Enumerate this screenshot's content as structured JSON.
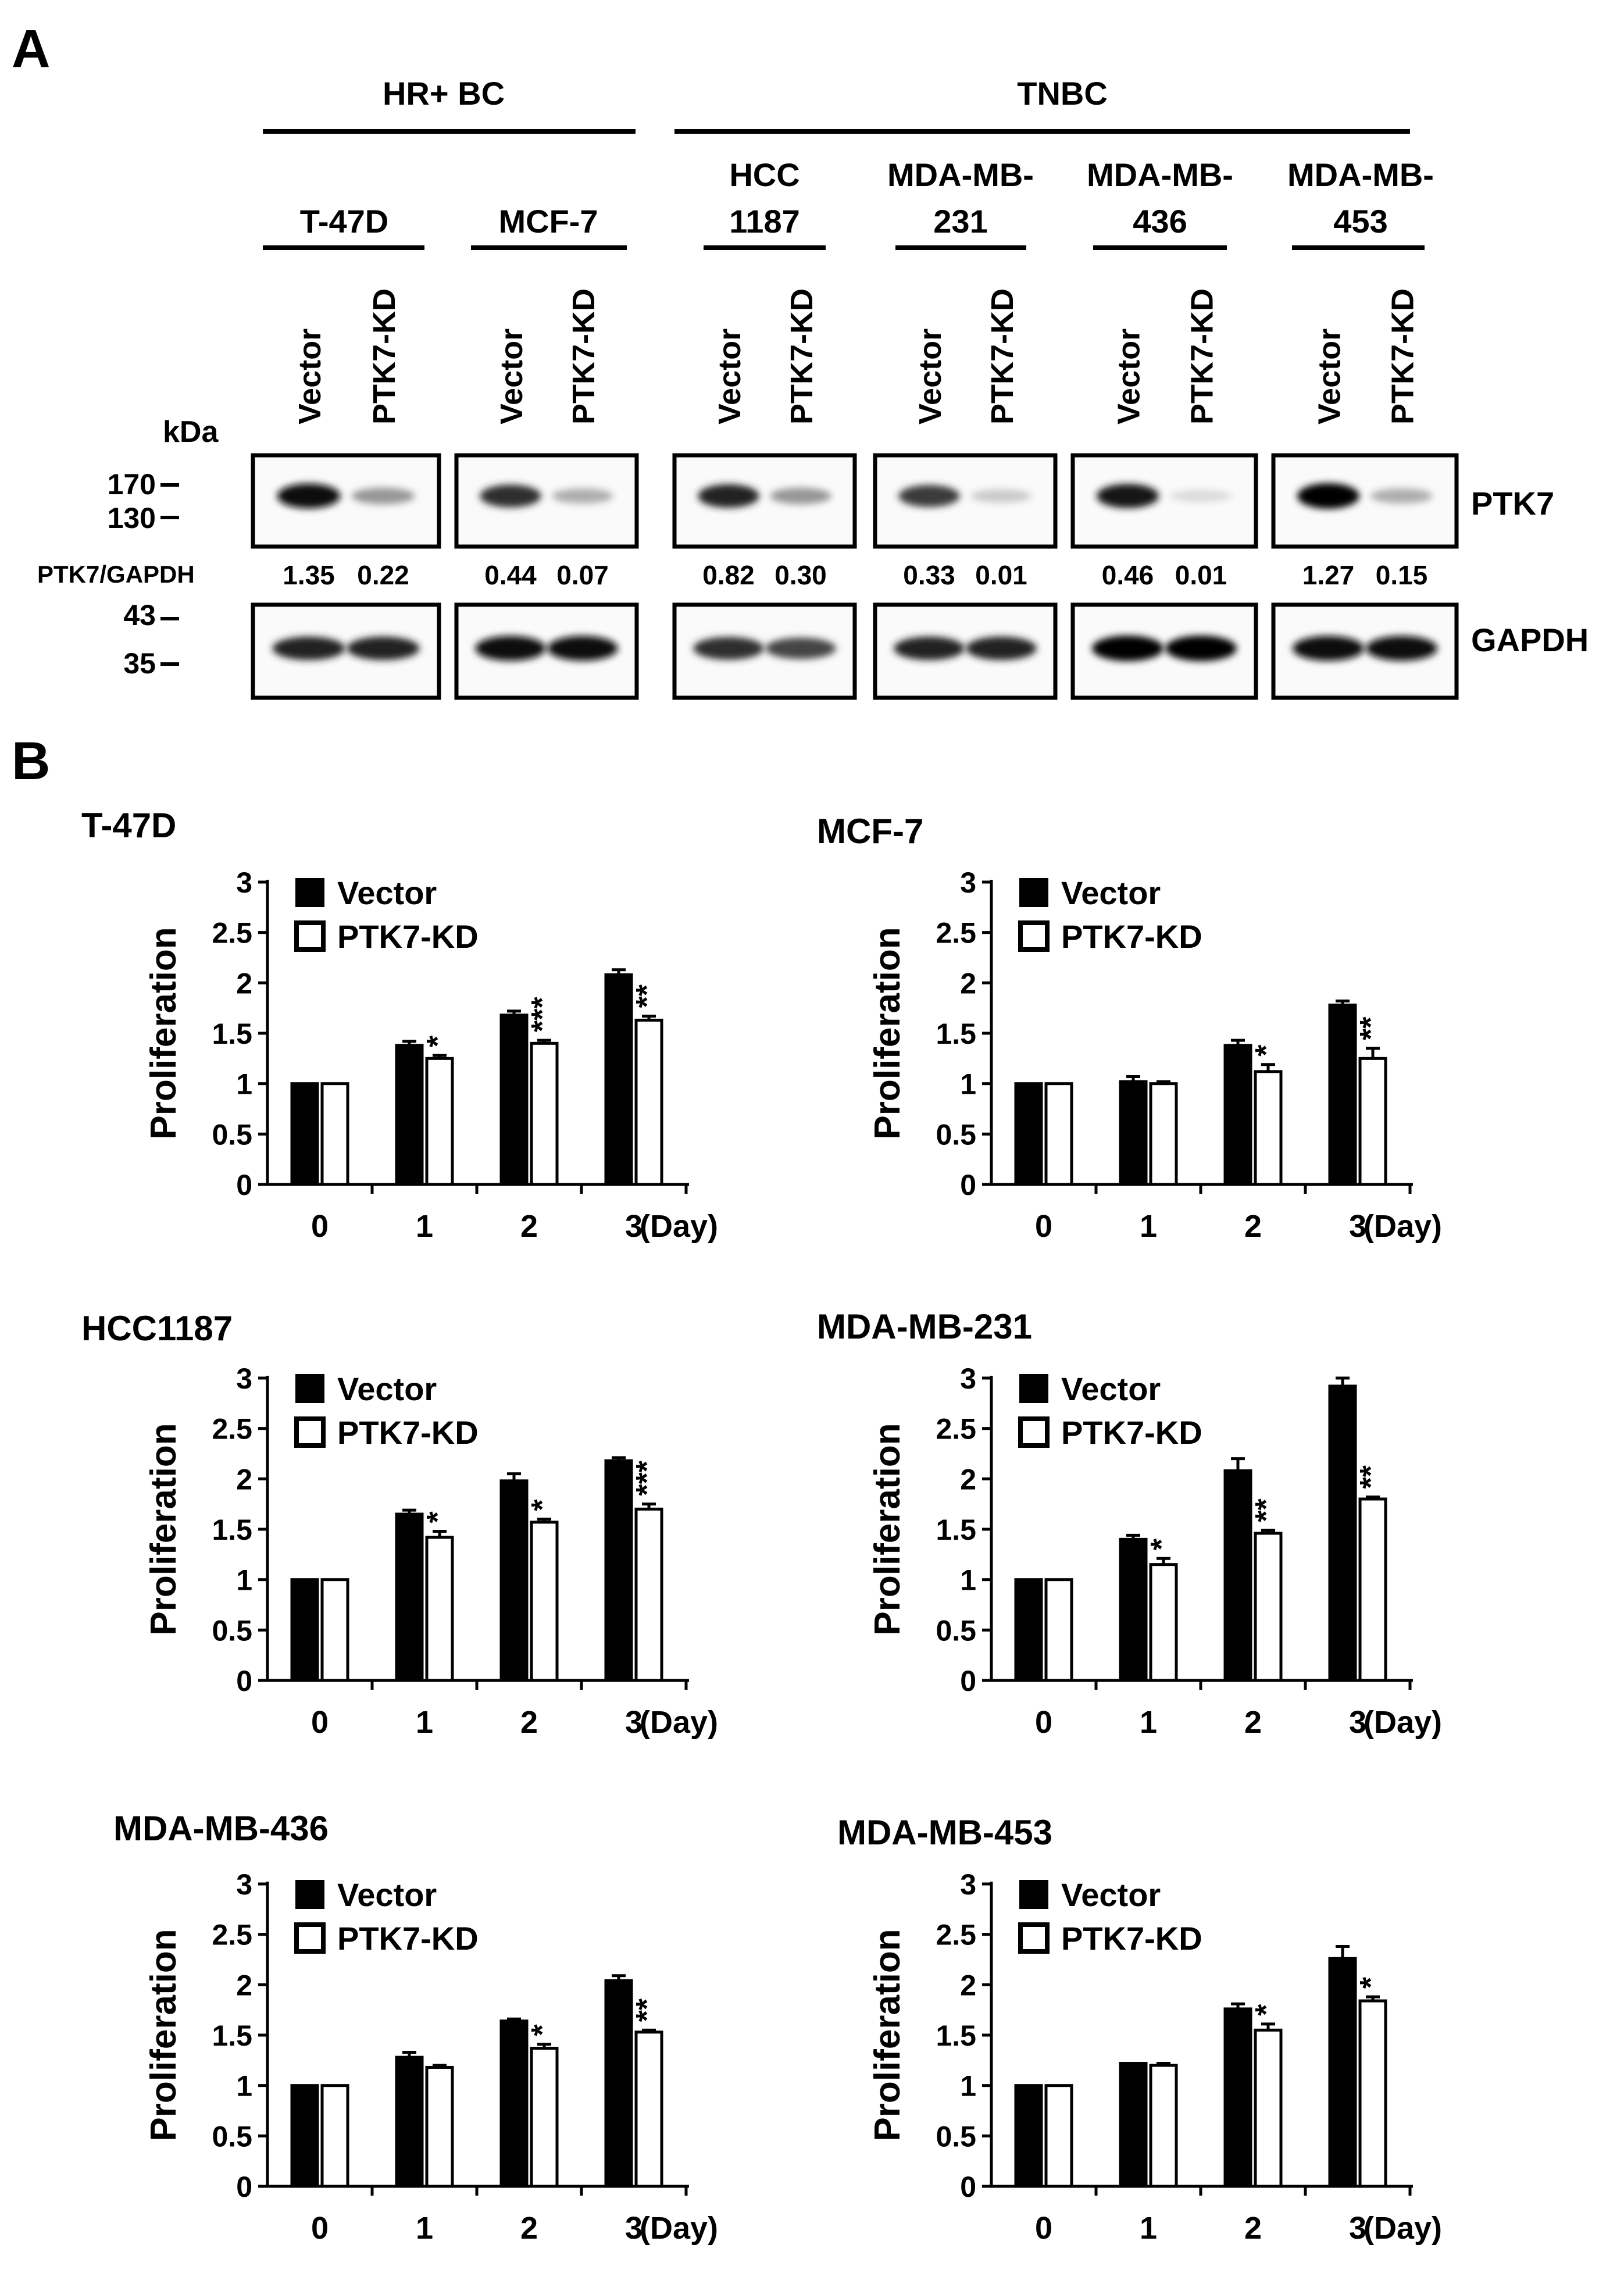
{
  "panel_a": {
    "label": "A",
    "groups": [
      {
        "label": "HR+ BC"
      },
      {
        "label": "TNBC"
      }
    ],
    "cell_lines": [
      {
        "label_lines": [
          "T-47D"
        ],
        "ratio_vector": "1.35",
        "ratio_kd": "0.22"
      },
      {
        "label_lines": [
          "MCF-7"
        ],
        "ratio_vector": "0.44",
        "ratio_kd": "0.07"
      },
      {
        "label_lines": [
          "HCC",
          "1187"
        ],
        "ratio_vector": "0.82",
        "ratio_kd": "0.30"
      },
      {
        "label_lines": [
          "MDA-MB-",
          "231"
        ],
        "ratio_vector": "0.33",
        "ratio_kd": "0.01"
      },
      {
        "label_lines": [
          "MDA-MB-",
          "436"
        ],
        "ratio_vector": "0.46",
        "ratio_kd": "0.01"
      },
      {
        "label_lines": [
          "MDA-MB-",
          "453"
        ],
        "ratio_vector": "1.27",
        "ratio_kd": "0.15"
      }
    ],
    "lane_labels": {
      "vector": "Vector",
      "kd": "PTK7-KD"
    },
    "kda_label": "kDa",
    "markers_top": [
      "170",
      "130"
    ],
    "markers_bottom": [
      "43",
      "35"
    ],
    "ratio_label": "PTK7/GAPDH",
    "band_labels": {
      "top": "PTK7",
      "bottom": "GAPDH"
    },
    "band_intensity": {
      "ptk7": [
        [
          0.95,
          0.35
        ],
        [
          0.8,
          0.25
        ],
        [
          0.85,
          0.35
        ],
        [
          0.75,
          0.12
        ],
        [
          0.9,
          0.05
        ],
        [
          1.0,
          0.25
        ]
      ],
      "gapdh": [
        [
          0.85,
          0.85
        ],
        [
          0.95,
          0.95
        ],
        [
          0.8,
          0.7
        ],
        [
          0.85,
          0.85
        ],
        [
          1.0,
          1.0
        ],
        [
          0.95,
          0.95
        ]
      ]
    }
  },
  "panel_b": {
    "label": "B",
    "ylabel": "Proliferation",
    "xunit": "(Day)",
    "legend": {
      "vector": "Vector",
      "kd": "PTK7-KD"
    }
  },
  "chart_data": [
    {
      "type": "bar",
      "title": "T-47D",
      "categories": [
        "0",
        "1",
        "2",
        "3"
      ],
      "ylim": [
        0,
        3
      ],
      "yticks": [
        "0",
        "0.5",
        "1",
        "1.5",
        "2",
        "2.5",
        "3"
      ],
      "series": [
        {
          "name": "Vector",
          "values": [
            1.0,
            1.38,
            1.68,
            2.08
          ],
          "errors": [
            0.01,
            0.04,
            0.04,
            0.05
          ],
          "color": "#000000"
        },
        {
          "name": "PTK7-KD",
          "values": [
            1.0,
            1.25,
            1.4,
            1.63
          ],
          "errors": [
            0.01,
            0.03,
            0.03,
            0.04
          ],
          "color": "#ffffff"
        }
      ],
      "significance": [
        "",
        "*",
        "***",
        "**"
      ]
    },
    {
      "type": "bar",
      "title": "MCF-7",
      "categories": [
        "0",
        "1",
        "2",
        "3"
      ],
      "ylim": [
        0,
        3
      ],
      "yticks": [
        "0",
        "0.5",
        "1",
        "1.5",
        "2",
        "2.5",
        "3"
      ],
      "series": [
        {
          "name": "Vector",
          "values": [
            1.0,
            1.02,
            1.38,
            1.78
          ],
          "errors": [
            0.01,
            0.05,
            0.05,
            0.04
          ],
          "color": "#000000"
        },
        {
          "name": "PTK7-KD",
          "values": [
            1.0,
            1.0,
            1.12,
            1.25
          ],
          "errors": [
            0.01,
            0.02,
            0.07,
            0.1
          ],
          "color": "#ffffff"
        }
      ],
      "significance": [
        "",
        "",
        "*",
        "**"
      ]
    },
    {
      "type": "bar",
      "title": "HCC1187",
      "categories": [
        "0",
        "1",
        "2",
        "3"
      ],
      "ylim": [
        0,
        3
      ],
      "yticks": [
        "0",
        "0.5",
        "1",
        "1.5",
        "2",
        "2.5",
        "3"
      ],
      "series": [
        {
          "name": "Vector",
          "values": [
            1.0,
            1.65,
            1.98,
            2.18
          ],
          "errors": [
            0.01,
            0.04,
            0.07,
            0.03
          ],
          "color": "#000000"
        },
        {
          "name": "PTK7-KD",
          "values": [
            1.0,
            1.42,
            1.57,
            1.7
          ],
          "errors": [
            0.01,
            0.06,
            0.03,
            0.05
          ],
          "color": "#ffffff"
        }
      ],
      "significance": [
        "",
        "*",
        "*",
        "***"
      ]
    },
    {
      "type": "bar",
      "title": "MDA-MB-231",
      "categories": [
        "0",
        "1",
        "2",
        "3"
      ],
      "ylim": [
        0,
        3
      ],
      "yticks": [
        "0",
        "0.5",
        "1",
        "1.5",
        "2",
        "2.5",
        "3"
      ],
      "series": [
        {
          "name": "Vector",
          "values": [
            1.0,
            1.4,
            2.08,
            2.92
          ],
          "errors": [
            0.01,
            0.04,
            0.12,
            0.08
          ],
          "color": "#000000"
        },
        {
          "name": "PTK7-KD",
          "values": [
            1.0,
            1.15,
            1.46,
            1.8
          ],
          "errors": [
            0.01,
            0.06,
            0.03,
            0.02
          ],
          "color": "#ffffff"
        }
      ],
      "significance": [
        "",
        "*",
        "**",
        "**"
      ]
    },
    {
      "type": "bar",
      "title": "MDA-MB-436",
      "categories": [
        "0",
        "1",
        "2",
        "3"
      ],
      "ylim": [
        0,
        3
      ],
      "yticks": [
        "0",
        "0.5",
        "1",
        "1.5",
        "2",
        "2.5",
        "3"
      ],
      "series": [
        {
          "name": "Vector",
          "values": [
            1.0,
            1.28,
            1.64,
            2.04
          ],
          "errors": [
            0.01,
            0.05,
            0.02,
            0.05
          ],
          "color": "#000000"
        },
        {
          "name": "PTK7-KD",
          "values": [
            1.0,
            1.18,
            1.37,
            1.53
          ],
          "errors": [
            0.01,
            0.02,
            0.04,
            0.02
          ],
          "color": "#ffffff"
        }
      ],
      "significance": [
        "",
        "",
        "*",
        "**"
      ]
    },
    {
      "type": "bar",
      "title": "MDA-MB-453",
      "categories": [
        "0",
        "1",
        "2",
        "3"
      ],
      "ylim": [
        0,
        3
      ],
      "yticks": [
        "0",
        "0.5",
        "1",
        "1.5",
        "2",
        "2.5",
        "3"
      ],
      "series": [
        {
          "name": "Vector",
          "values": [
            1.0,
            1.22,
            1.76,
            2.26
          ],
          "errors": [
            0.01,
            0.01,
            0.05,
            0.12
          ],
          "color": "#000000"
        },
        {
          "name": "PTK7-KD",
          "values": [
            1.0,
            1.2,
            1.55,
            1.84
          ],
          "errors": [
            0.01,
            0.02,
            0.06,
            0.04
          ],
          "color": "#ffffff"
        }
      ],
      "significance": [
        "",
        "",
        "*",
        "*"
      ]
    }
  ]
}
